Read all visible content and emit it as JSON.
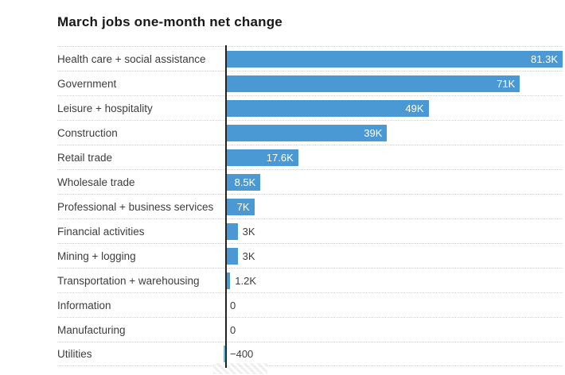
{
  "chart_data": {
    "type": "bar",
    "orientation": "horizontal",
    "title": "March jobs one-month net change",
    "categories": [
      "Health care + social assistance",
      "Government",
      "Leisure + hospitality",
      "Construction",
      "Retail trade",
      "Wholesale trade",
      "Professional + business services",
      "Financial activities",
      "Mining + logging",
      "Transportation + warehousing",
      "Information",
      "Manufacturing",
      "Utilities"
    ],
    "values": [
      81300,
      71000,
      49000,
      39000,
      17600,
      8500,
      7000,
      3000,
      3000,
      1200,
      0,
      0,
      -400
    ],
    "value_labels": [
      "81.3K",
      "71K",
      "49K",
      "39K",
      "17.6K",
      "8.5K",
      "7K",
      "3K",
      "3K",
      "1.2K",
      "0",
      "0",
      "−400"
    ],
    "label_inside": [
      true,
      true,
      true,
      true,
      true,
      true,
      true,
      false,
      false,
      false,
      false,
      false,
      false
    ],
    "xlim": [
      -400,
      81300
    ],
    "xlabel": "",
    "ylabel": "",
    "grid": "dotted-row-separators",
    "legend": "none",
    "bar_color": "#4a99d4",
    "negative_bar_color": "#56c3e8",
    "axis_color": "#222222",
    "separator_color": "#d2d2d2",
    "title_color": "#181818",
    "label_color": "#3d3d3d",
    "inside_value_color": "#ffffff"
  }
}
